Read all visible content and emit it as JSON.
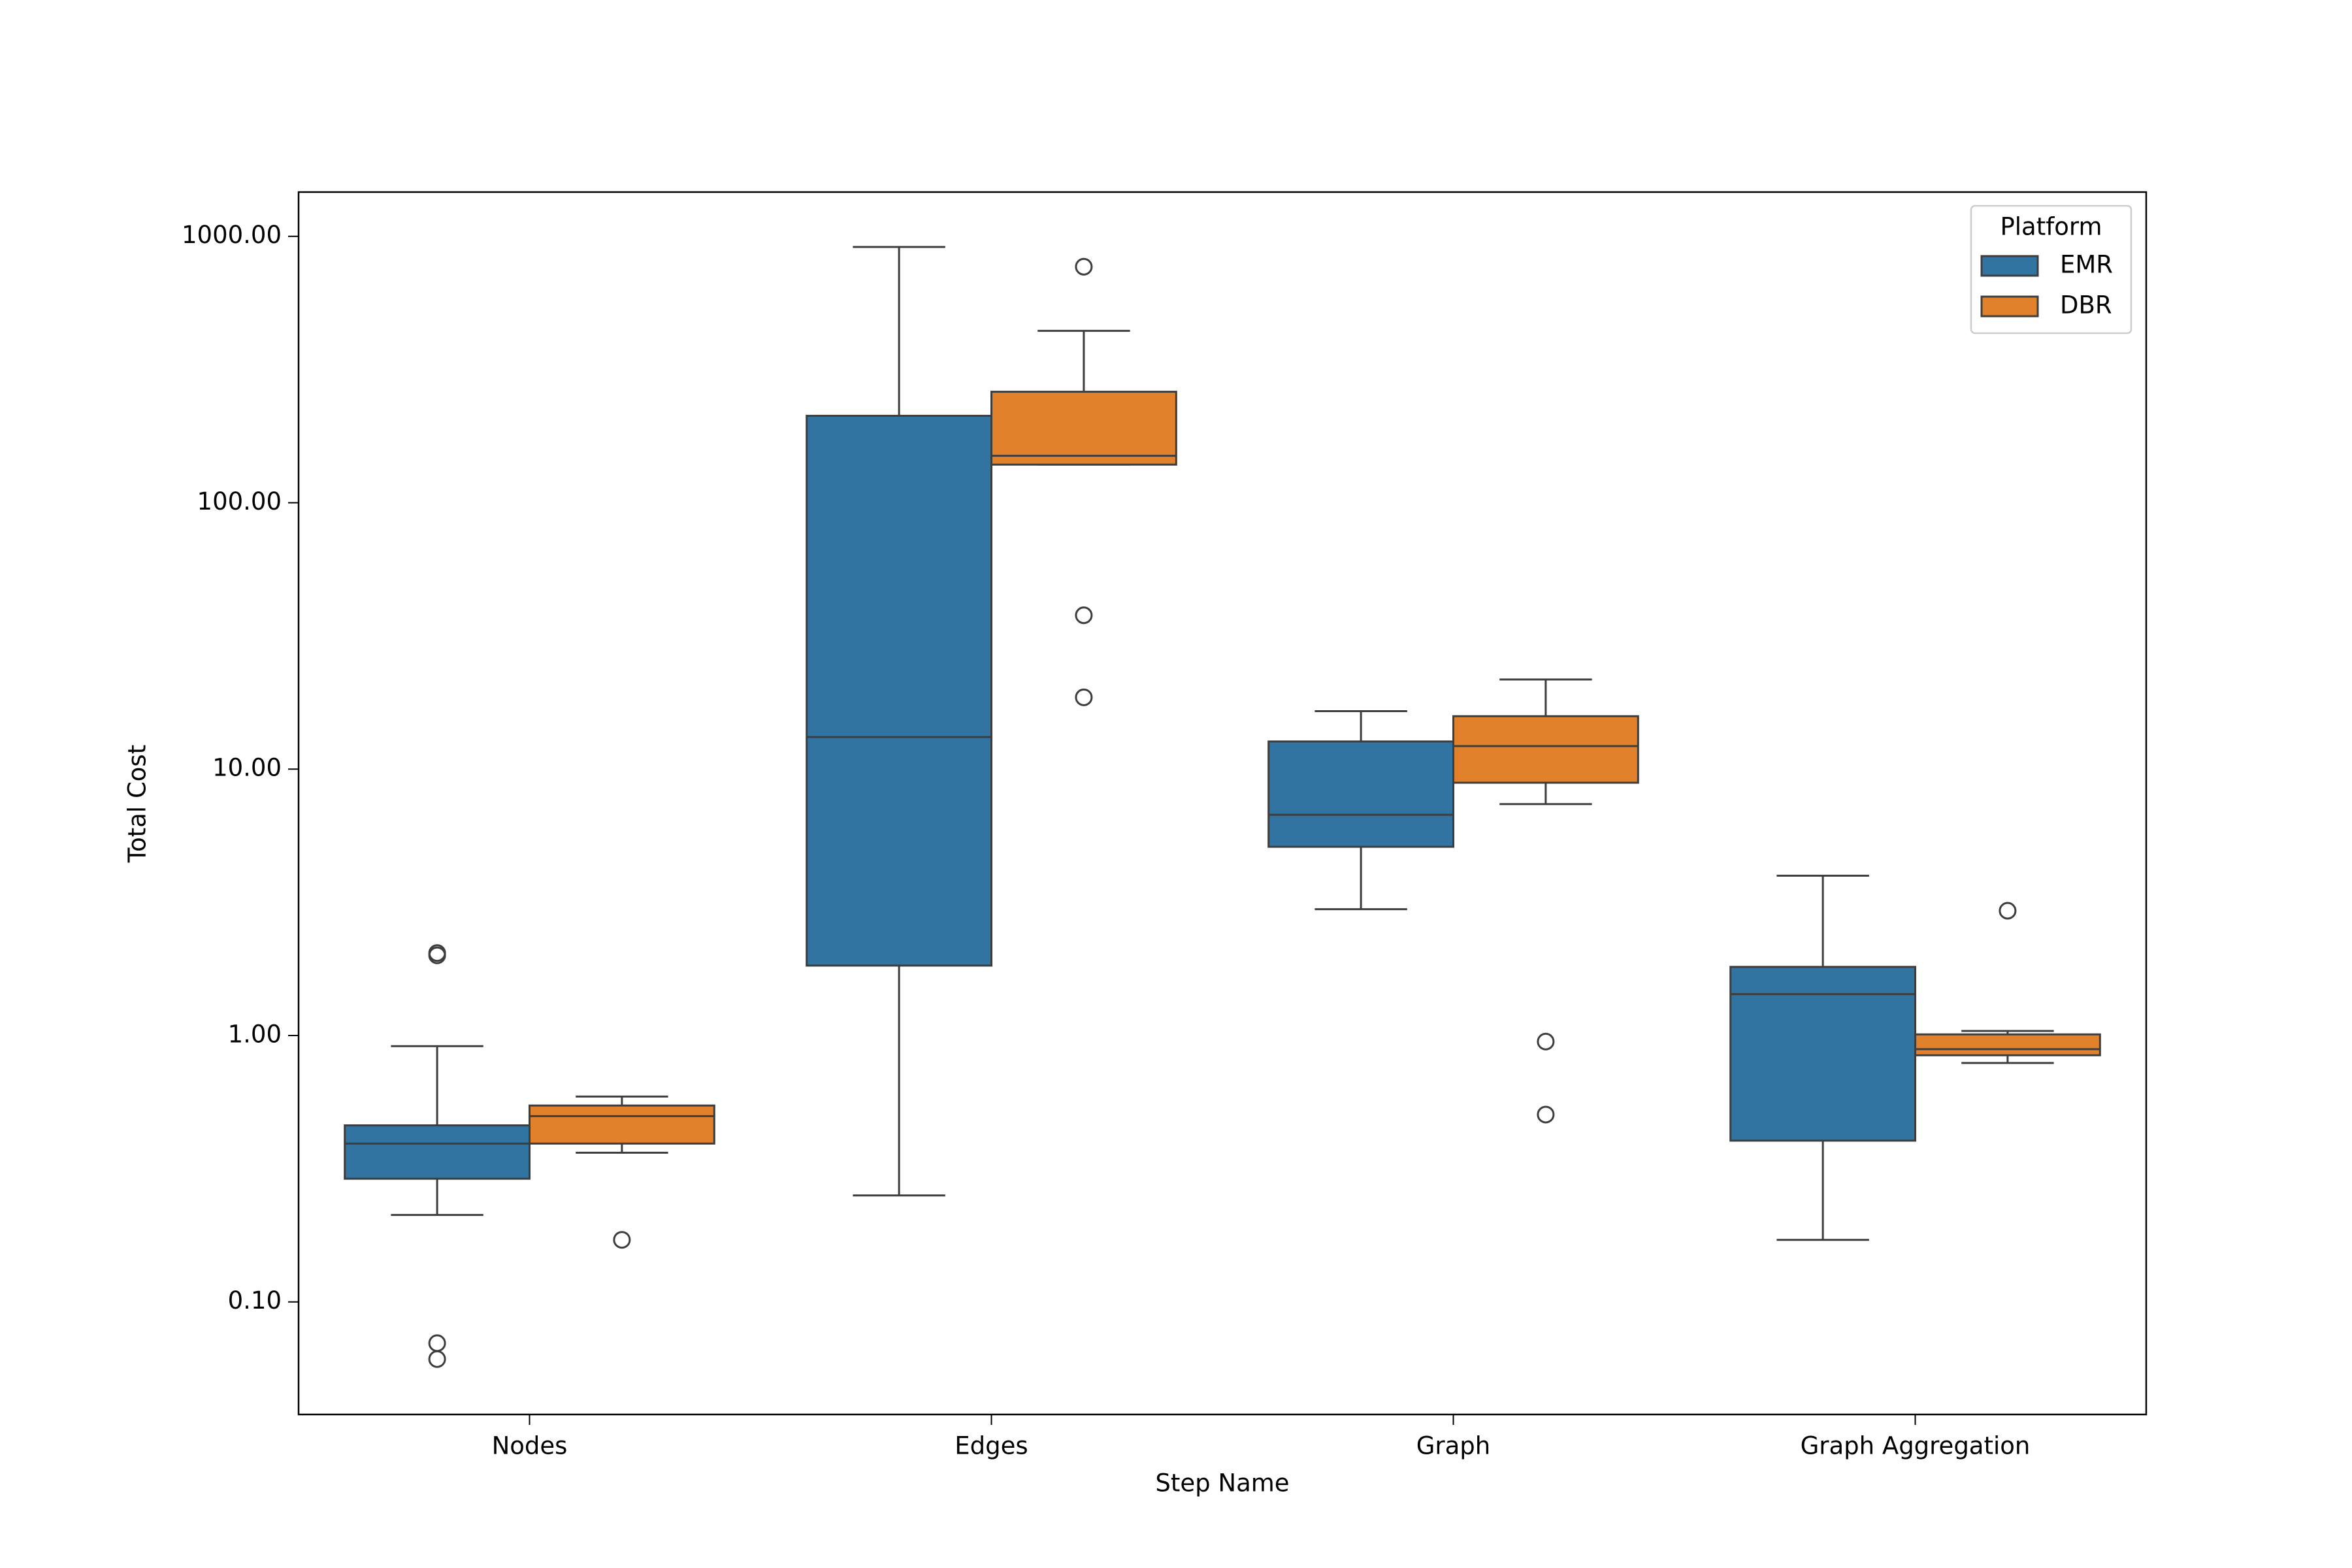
{
  "chart_data": {
    "type": "box",
    "x_label": "Step Name",
    "y_label": "Total Cost",
    "categories": [
      "Nodes",
      "Edges",
      "Graph",
      "Graph Aggregation"
    ],
    "log_y": true,
    "ylim": [
      0.0378,
      1466
    ],
    "yticks": [
      {
        "value": 0.1,
        "label": "0.10"
      },
      {
        "value": 1,
        "label": "1.00"
      },
      {
        "value": 10,
        "label": "10.00"
      },
      {
        "value": 100,
        "label": "100.00"
      },
      {
        "value": 1000,
        "label": "1000.00"
      }
    ],
    "legend_title": "Platform",
    "legend_position": "upper right",
    "series": [
      {
        "name": "EMR",
        "color": "#3274a1",
        "boxes": [
          {
            "whislo": 0.212,
            "q1": 0.29,
            "med": 0.393,
            "q3": 0.46,
            "whishi": 0.912,
            "fliers": [
              2.04,
              2.0,
              0.07,
              0.061
            ]
          },
          {
            "whislo": 0.251,
            "q1": 1.83,
            "med": 13.2,
            "q3": 212,
            "whishi": 912,
            "fliers": []
          },
          {
            "whislo": 2.98,
            "q1": 5.11,
            "med": 6.74,
            "q3": 12.7,
            "whishi": 16.5,
            "fliers": []
          },
          {
            "whislo": 0.171,
            "q1": 0.403,
            "med": 1.43,
            "q3": 1.81,
            "whishi": 3.98,
            "fliers": []
          }
        ]
      },
      {
        "name": "DBR",
        "color": "#e1812c",
        "boxes": [
          {
            "whislo": 0.363,
            "q1": 0.393,
            "med": 0.498,
            "q3": 0.546,
            "whishi": 0.59,
            "fliers": [
              0.171
            ]
          },
          {
            "whislo": 139,
            "q1": 139,
            "med": 150,
            "q3": 261,
            "whishi": 442,
            "fliers": [
              769,
              37.8,
              18.6
            ]
          },
          {
            "whislo": 7.39,
            "q1": 8.89,
            "med": 12.2,
            "q3": 15.8,
            "whishi": 21.7,
            "fliers": [
              0.949,
              0.505
            ]
          },
          {
            "whislo": 0.789,
            "q1": 0.843,
            "med": 0.889,
            "q3": 1.01,
            "whishi": 1.04,
            "fliers": [
              2.94
            ]
          }
        ]
      }
    ]
  }
}
